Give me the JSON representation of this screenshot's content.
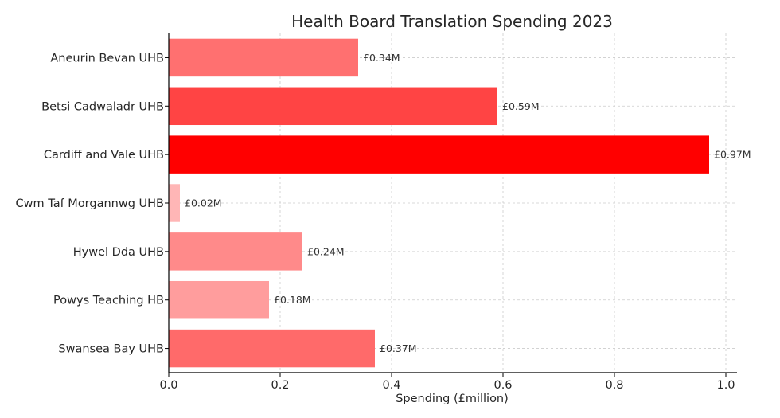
{
  "chart_data": {
    "type": "bar",
    "orientation": "horizontal",
    "title": "Health Board Translation Spending 2023",
    "xlabel": "Spending (£million)",
    "ylabel": "",
    "xlim": [
      0,
      1.02
    ],
    "xticks": [
      0.0,
      0.2,
      0.4,
      0.6,
      0.8,
      1.0
    ],
    "xtick_labels": [
      "0.0",
      "0.2",
      "0.4",
      "0.6",
      "0.8",
      "1.0"
    ],
    "grid": true,
    "categories": [
      "Aneurin Bevan UHB",
      "Betsi Cadwaladr UHB",
      "Cardiff and Vale UHB",
      "Cwm Taf Morgannwg UHB",
      "Hywel Dda UHB",
      "Powys Teaching HB",
      "Swansea Bay UHB"
    ],
    "values": [
      0.34,
      0.59,
      0.97,
      0.02,
      0.24,
      0.18,
      0.37
    ],
    "data_labels": [
      "£0.34M",
      "£0.59M",
      "£0.97M",
      "£0.02M",
      "£0.24M",
      "£0.18M",
      "£0.37M"
    ],
    "colors": [
      "#ff7070",
      "#ff4444",
      "#ff0000",
      "#ffb6b6",
      "#ff8a8a",
      "#ff9d9d",
      "#ff6a6a"
    ]
  }
}
